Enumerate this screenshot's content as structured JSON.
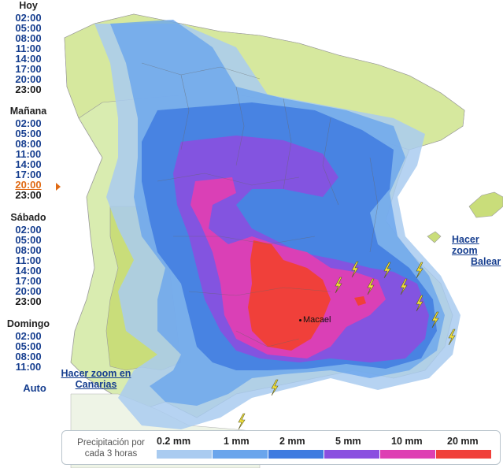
{
  "sidebar": {
    "days": [
      {
        "label": "Hoy",
        "times": [
          "02:00",
          "05:00",
          "08:00",
          "11:00",
          "14:00",
          "17:00",
          "20:00",
          "23:00"
        ]
      },
      {
        "label": "Mañana",
        "times": [
          "02:00",
          "05:00",
          "08:00",
          "11:00",
          "14:00",
          "17:00",
          "20:00",
          "23:00"
        ]
      },
      {
        "label": "Sábado",
        "times": [
          "02:00",
          "05:00",
          "08:00",
          "11:00",
          "14:00",
          "17:00",
          "20:00",
          "23:00"
        ]
      },
      {
        "label": "Domingo",
        "times": [
          "02:00",
          "05:00",
          "08:00",
          "11:00"
        ]
      }
    ],
    "selected": {
      "day": "Mañana",
      "time": "20:00"
    },
    "auto_label": "Auto"
  },
  "map": {
    "city_label": "Macael",
    "zoom_canarias": [
      "Hacer zoom en",
      "Canarias"
    ],
    "zoom_baleares": [
      "Hacer zoom",
      "Balear"
    ],
    "lightning_icon": "lightning-bolt-icon",
    "lightning_count": 12
  },
  "legend": {
    "title_line1": "Precipitación por",
    "title_line2": "cada 3 horas",
    "levels": [
      {
        "label": "0.2 mm",
        "color": "#a9cbf0"
      },
      {
        "label": "1 mm",
        "color": "#6aa5ec"
      },
      {
        "label": "2 mm",
        "color": "#3f7be0"
      },
      {
        "label": "5 mm",
        "color": "#8a4fe0"
      },
      {
        "label": "10 mm",
        "color": "#de3fb3"
      },
      {
        "label": "20 mm",
        "color": "#f0403a"
      }
    ]
  },
  "colors": {
    "land": "#d9ecb0",
    "land_green": "#c9dd7a",
    "sea": "#ffffff",
    "link": "#163e8f",
    "active": "#e06a14"
  }
}
